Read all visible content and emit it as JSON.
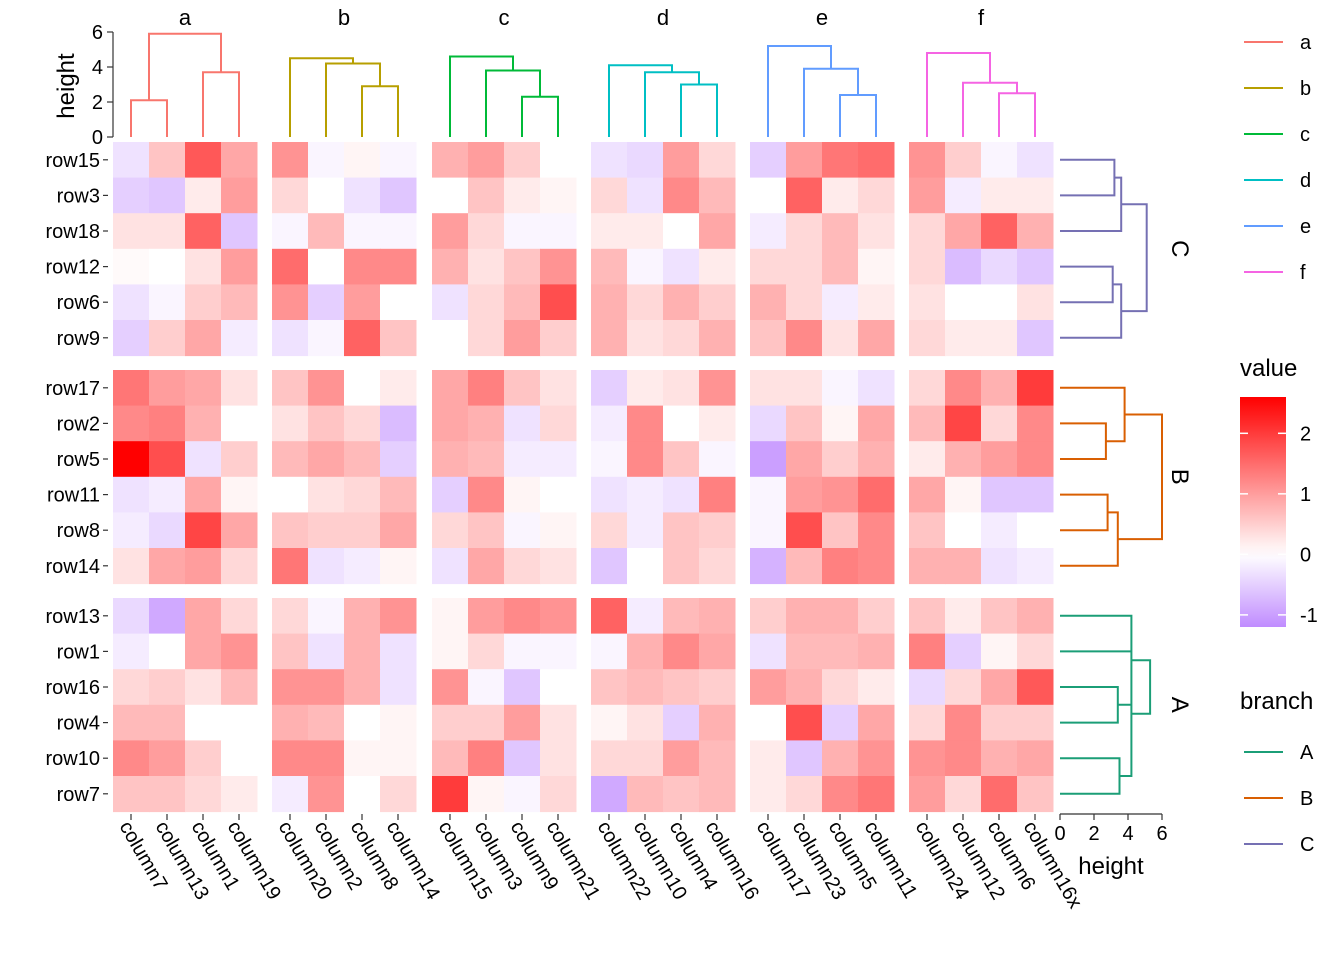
{
  "chart_data": {
    "type": "heatmap",
    "title": "",
    "fill_legend": {
      "title": "value",
      "breaks": [
        "2",
        "1",
        "0",
        "-1"
      ],
      "limits": [
        -1.2,
        2.6
      ],
      "colors": {
        "low": "#c08cff",
        "mid": "#ffffff",
        "high": "#ff0000"
      }
    },
    "branch_legend": {
      "title": "branch",
      "items": [
        "A",
        "B",
        "C"
      ],
      "colors": [
        "#1b9e77",
        "#d95f02",
        "#7570b3"
      ]
    },
    "column_legend": {
      "items": [
        "a",
        "b",
        "c",
        "d",
        "e",
        "f"
      ],
      "colors": [
        "#f8766d",
        "#b79f00",
        "#00ba38",
        "#00bfc4",
        "#619cff",
        "#f564e3"
      ]
    },
    "top_dendrogram_axis": {
      "label": "height",
      "ticks": [
        "0",
        "2",
        "4",
        "6"
      ],
      "range": [
        0,
        6.2
      ]
    },
    "right_dendrogram_axis": {
      "label": "height",
      "ticks": [
        "0",
        "2",
        "4",
        "6"
      ],
      "range": [
        0,
        6.2
      ]
    },
    "column_groups": [
      {
        "name": "a",
        "columns": [
          "column7",
          "column13",
          "column1",
          "column19"
        ],
        "merge_heights": [
          2.1,
          3.7,
          5.9
        ]
      },
      {
        "name": "b",
        "columns": [
          "column20",
          "column2",
          "column8",
          "column14"
        ],
        "merge_heights": [
          2.9,
          4.2,
          4.5
        ]
      },
      {
        "name": "c",
        "columns": [
          "column15",
          "column3",
          "column9",
          "column21"
        ],
        "merge_heights": [
          2.3,
          3.8,
          4.6
        ]
      },
      {
        "name": "d",
        "columns": [
          "column22",
          "column10",
          "column4",
          "column16"
        ],
        "merge_heights": [
          3.0,
          3.7,
          4.1
        ]
      },
      {
        "name": "e",
        "columns": [
          "column17",
          "column23",
          "column5",
          "column11"
        ],
        "merge_heights": [
          2.4,
          3.9,
          5.2
        ]
      },
      {
        "name": "f",
        "columns": [
          "column24",
          "column12",
          "column6",
          "column16x"
        ],
        "merge_heights": [
          2.5,
          3.1,
          4.8
        ]
      }
    ],
    "row_groups": [
      {
        "name": "C",
        "rows": [
          "row15",
          "row3",
          "row18",
          "row12",
          "row6",
          "row9"
        ]
      },
      {
        "name": "B",
        "rows": [
          "row17",
          "row2",
          "row5",
          "row11",
          "row8",
          "row14"
        ]
      },
      {
        "name": "A",
        "rows": [
          "row13",
          "row1",
          "row16",
          "row4",
          "row10",
          "row7"
        ]
      }
    ],
    "values": [
      [
        -0.3,
        0.6,
        1.7,
        0.9,
        1.1,
        -0.1,
        0.1,
        -0.1,
        0.8,
        1.0,
        0.5,
        0.0,
        -0.3,
        -0.4,
        1.0,
        0.4,
        -0.5,
        1.0,
        1.4,
        1.5,
        1.1,
        0.5,
        -0.1,
        -0.3
      ],
      [
        -0.5,
        -0.6,
        0.2,
        1.0,
        0.4,
        0.0,
        -0.3,
        -0.6,
        0.0,
        0.6,
        0.2,
        0.1,
        0.4,
        -0.3,
        1.2,
        0.7,
        0.0,
        1.6,
        0.2,
        0.4,
        1.0,
        -0.2,
        0.2,
        0.2
      ],
      [
        0.3,
        0.3,
        1.6,
        -0.6,
        -0.1,
        0.7,
        -0.1,
        -0.1,
        1.0,
        0.4,
        -0.1,
        -0.1,
        0.2,
        0.2,
        0.0,
        0.9,
        -0.2,
        0.4,
        0.7,
        0.3,
        0.4,
        0.9,
        1.6,
        0.8
      ],
      [
        0.05,
        0.0,
        0.3,
        1.0,
        1.5,
        0.0,
        1.2,
        1.2,
        0.8,
        0.3,
        0.6,
        1.1,
        0.7,
        -0.1,
        -0.3,
        0.2,
        0.4,
        0.4,
        0.7,
        0.1,
        0.4,
        -0.7,
        -0.4,
        -0.6
      ],
      [
        -0.3,
        -0.1,
        0.5,
        0.7,
        1.1,
        -0.5,
        1.0,
        0.0,
        -0.3,
        0.4,
        0.7,
        1.8,
        0.8,
        0.4,
        0.8,
        0.5,
        0.8,
        0.4,
        -0.2,
        0.2,
        0.3,
        0.0,
        0.0,
        0.3
      ],
      [
        -0.5,
        0.5,
        0.9,
        -0.2,
        -0.3,
        -0.1,
        1.6,
        0.6,
        0.0,
        0.4,
        1.0,
        0.5,
        0.8,
        0.3,
        0.4,
        0.8,
        0.6,
        1.2,
        0.3,
        0.9,
        0.4,
        0.2,
        0.2,
        -0.6
      ],
      [
        1.4,
        1.0,
        0.9,
        0.3,
        0.6,
        1.1,
        0.0,
        0.2,
        0.9,
        1.3,
        0.6,
        0.3,
        -0.5,
        0.2,
        0.3,
        1.1,
        0.3,
        0.3,
        -0.1,
        -0.3,
        0.4,
        1.2,
        0.8,
        2.0
      ],
      [
        1.2,
        1.3,
        0.8,
        0.0,
        0.3,
        0.6,
        0.4,
        -0.7,
        0.9,
        0.8,
        -0.3,
        0.4,
        -0.2,
        1.2,
        0.0,
        0.2,
        -0.4,
        0.6,
        0.1,
        0.9,
        0.7,
        1.9,
        0.4,
        1.2
      ],
      [
        2.6,
        1.8,
        -0.3,
        0.5,
        0.7,
        0.9,
        0.7,
        -0.5,
        0.8,
        0.7,
        -0.2,
        -0.2,
        -0.1,
        1.2,
        0.6,
        -0.1,
        -1.0,
        0.9,
        0.5,
        0.8,
        0.2,
        0.8,
        1.0,
        1.2
      ],
      [
        -0.3,
        -0.2,
        0.9,
        0.1,
        0.0,
        0.3,
        0.4,
        0.7,
        -0.5,
        1.2,
        0.1,
        0.0,
        -0.3,
        -0.2,
        -0.3,
        1.3,
        -0.1,
        1.0,
        1.1,
        1.5,
        0.9,
        0.1,
        -0.6,
        -0.6
      ],
      [
        -0.2,
        -0.4,
        1.9,
        0.9,
        0.6,
        0.5,
        0.5,
        0.9,
        0.4,
        0.6,
        -0.1,
        0.1,
        0.4,
        -0.2,
        0.6,
        0.5,
        -0.1,
        1.8,
        0.6,
        1.2,
        0.6,
        0.0,
        -0.2,
        0.0
      ],
      [
        0.3,
        0.9,
        1.0,
        0.4,
        1.4,
        -0.3,
        -0.2,
        0.1,
        -0.3,
        0.9,
        0.4,
        0.3,
        -0.6,
        0.0,
        0.6,
        0.4,
        -0.8,
        0.7,
        1.3,
        1.2,
        0.8,
        0.8,
        -0.3,
        -0.2
      ],
      [
        -0.4,
        -0.9,
        0.9,
        0.4,
        0.4,
        -0.1,
        0.8,
        1.1,
        0.1,
        1.0,
        1.2,
        1.1,
        1.6,
        -0.2,
        0.7,
        0.8,
        0.5,
        0.8,
        0.8,
        0.5,
        0.6,
        0.2,
        0.6,
        0.8
      ],
      [
        -0.2,
        0.0,
        0.9,
        1.1,
        0.6,
        -0.3,
        0.8,
        -0.3,
        0.1,
        0.4,
        -0.1,
        -0.1,
        -0.1,
        0.8,
        1.2,
        0.9,
        -0.3,
        0.7,
        0.7,
        0.8,
        1.3,
        -0.5,
        0.1,
        0.4
      ],
      [
        0.4,
        0.5,
        0.3,
        0.7,
        1.1,
        1.1,
        0.8,
        -0.3,
        1.1,
        -0.1,
        -0.6,
        0.0,
        0.6,
        0.7,
        0.6,
        0.5,
        1.0,
        0.8,
        0.4,
        0.2,
        -0.4,
        0.4,
        0.9,
        1.7
      ],
      [
        0.7,
        0.7,
        0.0,
        0.0,
        0.8,
        0.7,
        0.0,
        0.1,
        0.5,
        0.5,
        1.0,
        0.3,
        0.1,
        0.3,
        -0.5,
        0.8,
        0.0,
        1.8,
        -0.5,
        0.9,
        0.4,
        1.2,
        0.5,
        0.5
      ],
      [
        1.2,
        1.0,
        0.5,
        0.0,
        1.2,
        1.2,
        0.1,
        0.1,
        0.7,
        1.3,
        -0.6,
        0.3,
        0.4,
        0.4,
        1.0,
        0.7,
        0.2,
        -0.6,
        0.8,
        1.1,
        1.1,
        1.2,
        0.8,
        0.9
      ],
      [
        0.6,
        0.6,
        0.4,
        0.2,
        -0.2,
        1.1,
        0.0,
        0.4,
        2.0,
        0.1,
        -0.1,
        0.4,
        -0.9,
        0.7,
        0.6,
        0.7,
        0.2,
        0.4,
        1.2,
        1.4,
        1.0,
        0.4,
        1.5,
        0.6
      ]
    ]
  }
}
